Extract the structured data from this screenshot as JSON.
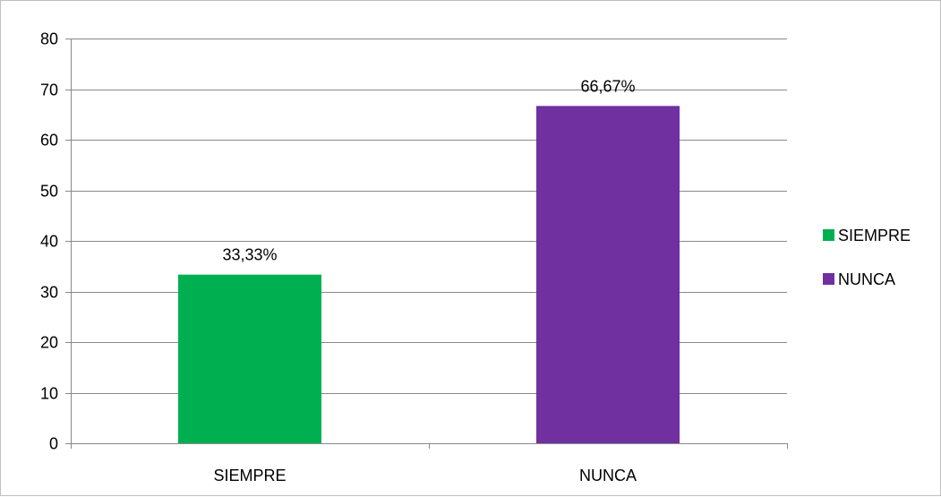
{
  "chart_data": {
    "type": "bar",
    "categories": [
      "SIEMPRE",
      "NUNCA"
    ],
    "values": [
      33.33,
      66.67
    ],
    "data_labels": [
      "33,33%",
      "66,67%"
    ],
    "colors": [
      "#00b050",
      "#7030a0"
    ],
    "title": "",
    "xlabel": "",
    "ylabel": "",
    "ylim": [
      0,
      80
    ],
    "yticks": [
      0,
      10,
      20,
      30,
      40,
      50,
      60,
      70,
      80
    ],
    "grid": true,
    "gridline_color": "#898989",
    "legend": {
      "position": "right",
      "entries": [
        "SIEMPRE",
        "NUNCA"
      ]
    }
  }
}
